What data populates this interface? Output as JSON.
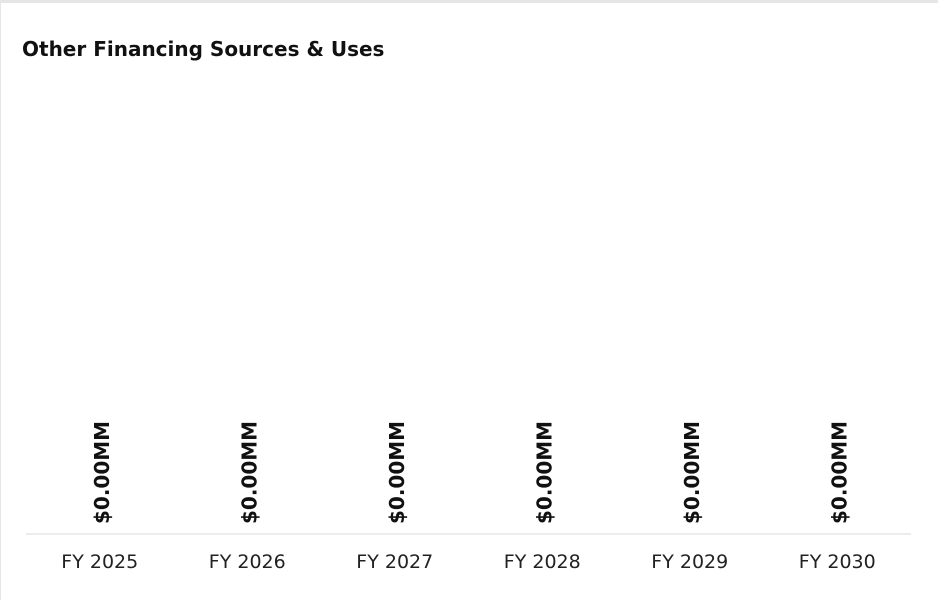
{
  "chart_data": {
    "type": "bar",
    "title": "Other Financing Sources & Uses",
    "xlabel": "",
    "ylabel": "",
    "categories": [
      "FY 2025",
      "FY 2026",
      "FY 2027",
      "FY 2028",
      "FY 2029",
      "FY 2030"
    ],
    "values": [
      0,
      0,
      0,
      0,
      0,
      0
    ],
    "data_labels": [
      "$0.00MM",
      "$0.00MM",
      "$0.00MM",
      "$0.00MM",
      "$0.00MM",
      "$0.00MM"
    ],
    "grid": false,
    "legend": "none",
    "colors": {
      "baseline": "#d9d9d9",
      "text": "#222222",
      "data_label": "#111111"
    }
  }
}
